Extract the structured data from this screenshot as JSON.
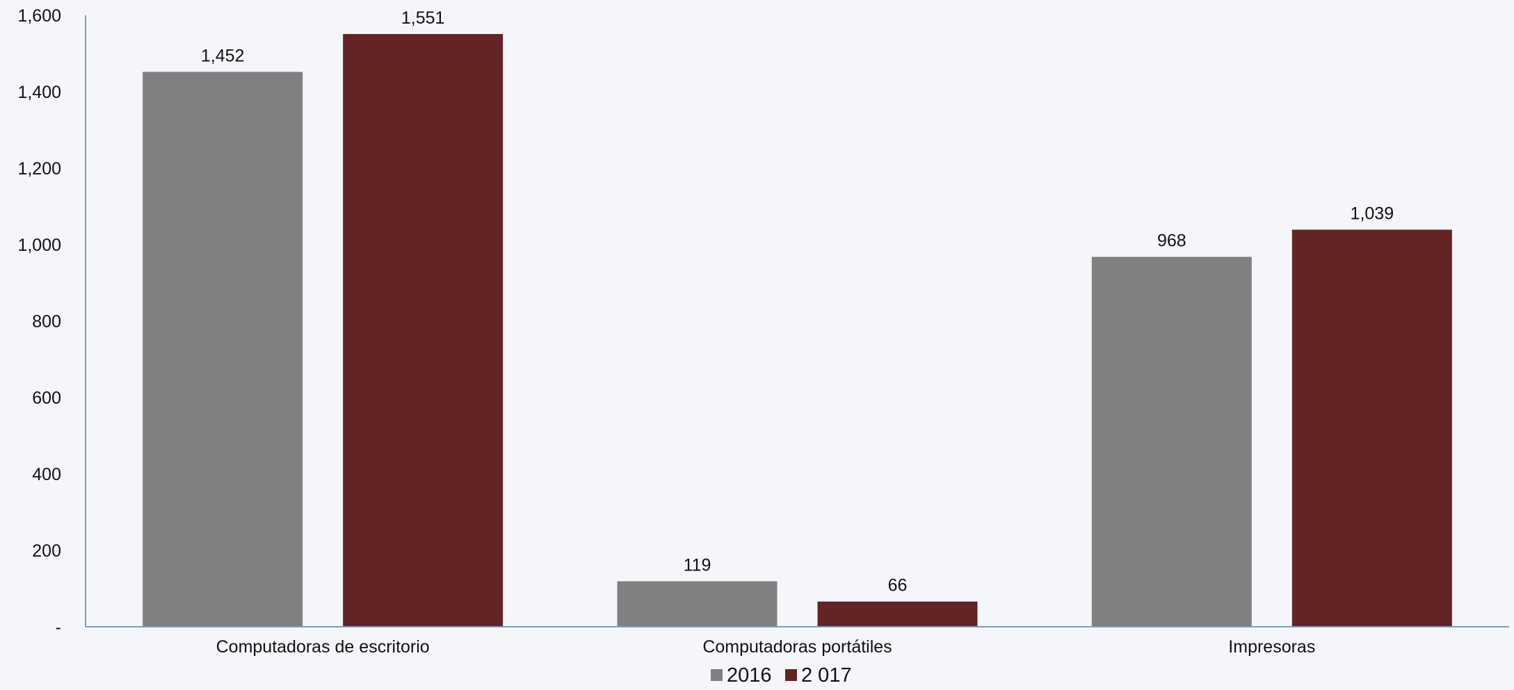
{
  "chart_data": {
    "type": "bar",
    "title": "",
    "xlabel": "",
    "ylabel": "",
    "categories": [
      "Computadoras de escritorio",
      "Computadoras portátiles",
      "Impresoras"
    ],
    "series": [
      {
        "name": "2016",
        "values": [
          1452,
          119,
          968
        ],
        "color": "#808080",
        "labels": [
          "1,452",
          "119",
          "968"
        ]
      },
      {
        "name": "2 017",
        "values": [
          1551,
          66,
          1039
        ],
        "color": "#632425",
        "labels": [
          "1,551",
          "66",
          "1,039"
        ]
      }
    ],
    "ylim": [
      0,
      1600
    ],
    "yticks": [
      {
        "value": 0,
        "label": "-"
      },
      {
        "value": 200,
        "label": "200"
      },
      {
        "value": 400,
        "label": "400"
      },
      {
        "value": 600,
        "label": "600"
      },
      {
        "value": 800,
        "label": "800"
      },
      {
        "value": 1000,
        "label": "1,000"
      },
      {
        "value": 1200,
        "label": "1,200"
      },
      {
        "value": 1400,
        "label": "1,400"
      },
      {
        "value": 1600,
        "label": "1,600"
      }
    ],
    "grid": false,
    "legend_position": "bottom-center",
    "axis_color": "#7a9fb8"
  }
}
